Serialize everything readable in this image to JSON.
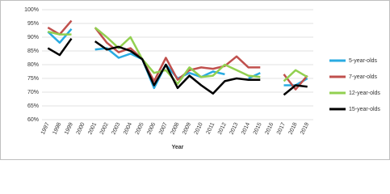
{
  "chart_data": {
    "type": "line",
    "x_label": "Year",
    "categories": [
      "1997",
      "1998",
      "1999",
      "2000",
      "2001",
      "2002",
      "2003",
      "2004",
      "2005",
      "2006",
      "2007",
      "2008",
      "2009",
      "2010",
      "2011",
      "2012",
      "2013",
      "2014",
      "2015",
      "2016",
      "2017",
      "2018",
      "2019"
    ],
    "series": [
      {
        "name": "5-year-olds",
        "color": "#29abe2",
        "values": [
          92,
          88,
          93,
          null,
          85.5,
          86,
          82.5,
          84,
          82,
          71.5,
          80,
          75,
          77,
          75.5,
          77.5,
          76.5,
          null,
          75,
          77,
          null,
          72.5,
          72.5,
          75
        ]
      },
      {
        "name": "7-year-olds",
        "color": "#c0504d",
        "values": [
          93.5,
          91,
          96,
          null,
          93.5,
          88,
          84.5,
          86,
          82,
          74,
          82.5,
          74.5,
          78,
          79,
          78.5,
          79.5,
          83,
          79,
          79,
          null,
          76.5,
          71,
          76
        ]
      },
      {
        "name": "12-year-olds",
        "color": "#92d050",
        "values": [
          92,
          91,
          91,
          null,
          93.5,
          90,
          86,
          90,
          82,
          77,
          78,
          73,
          79,
          75.5,
          76,
          80,
          78,
          76,
          75.5,
          null,
          74,
          78,
          75.5
        ]
      },
      {
        "name": "15-year-olds",
        "color": "#000000",
        "values": [
          86,
          83.5,
          89.5,
          null,
          88.5,
          85.5,
          86.5,
          85,
          82,
          72.5,
          80,
          71.5,
          76,
          72.5,
          69.5,
          74,
          75,
          74.5,
          74.5,
          null,
          69,
          72.5,
          72
        ]
      }
    ],
    "ylim": [
      60,
      100
    ],
    "yticks": [
      {
        "value": 60,
        "label": "60%"
      },
      {
        "value": 65,
        "label": "65%"
      },
      {
        "value": 70,
        "label": "70%"
      },
      {
        "value": 75,
        "label": "75%"
      },
      {
        "value": 80,
        "label": "80%"
      },
      {
        "value": 85,
        "label": "85%"
      },
      {
        "value": 90,
        "label": "90%"
      },
      {
        "value": 95,
        "label": "95%"
      },
      {
        "value": 100,
        "label": "100%"
      }
    ],
    "grid": true,
    "legend": "right"
  }
}
